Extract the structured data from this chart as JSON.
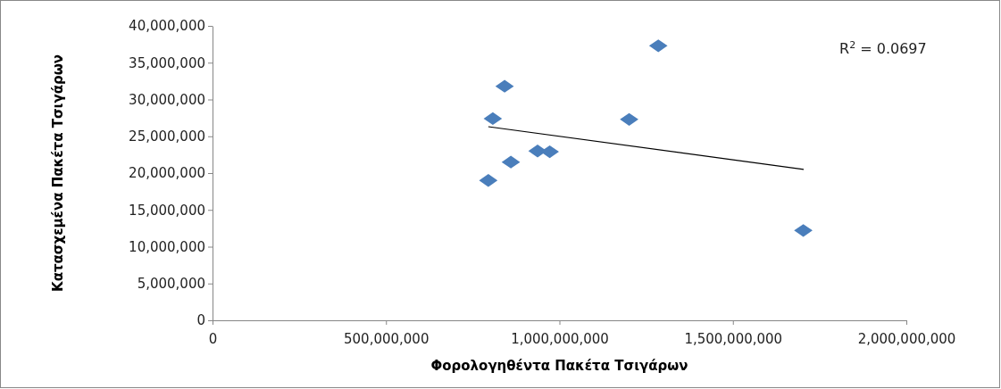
{
  "chart_data": {
    "type": "scatter",
    "xlabel": "Φορολογηθέντα Πακέτα Τσιγάρων",
    "ylabel": "Κατασχεμένα Πακέτα Τσιγάρων",
    "annotations": [
      "R$^{2}$ = 0.0697"
    ],
    "marker": "diamond",
    "grid": false,
    "xlim": [
      0,
      2000000000
    ],
    "xticks": [
      0,
      {
        "value": 500000000,
        "label": "500,000,000"
      },
      {
        "value": 1000000000,
        "label": "1,000,000,000"
      },
      {
        "value": 1500000000,
        "label": "1,500,000,000"
      },
      {
        "value": 2000000000,
        "label": "2,000,000,000"
      }
    ],
    "ylim": [
      0,
      40000000
    ],
    "yticks": [
      0,
      {
        "value": 5000000,
        "label": "5,000,000"
      },
      {
        "value": 10000000,
        "label": "10,000,000"
      },
      {
        "value": 15000000,
        "label": "15,000,000"
      },
      {
        "value": 20000000,
        "label": "20,000,000"
      },
      {
        "value": 25000000,
        "label": "25,000,000"
      },
      {
        "value": 30000000,
        "label": "30,000,000"
      },
      {
        "value": 35000000,
        "label": "35,000,000"
      },
      {
        "value": 40000000,
        "label": "40,000,000"
      }
    ],
    "series": [
      {
        "color": "#4a7ebb",
        "x": [
          795000000,
          808000000,
          842000000,
          860000000,
          937000000,
          972000000,
          1201000000,
          1285000000,
          1703000000
        ],
        "values": [
          19000000,
          27400000,
          31800000,
          21500000,
          23000000,
          22900000,
          27300000,
          37300000,
          12200000
        ]
      },
      {
        "type": "line",
        "color": "#000000",
        "marker": "none",
        "x": [
          795000000,
          1704000000
        ],
        "values": [
          26300000,
          20500000
        ]
      }
    ]
  }
}
